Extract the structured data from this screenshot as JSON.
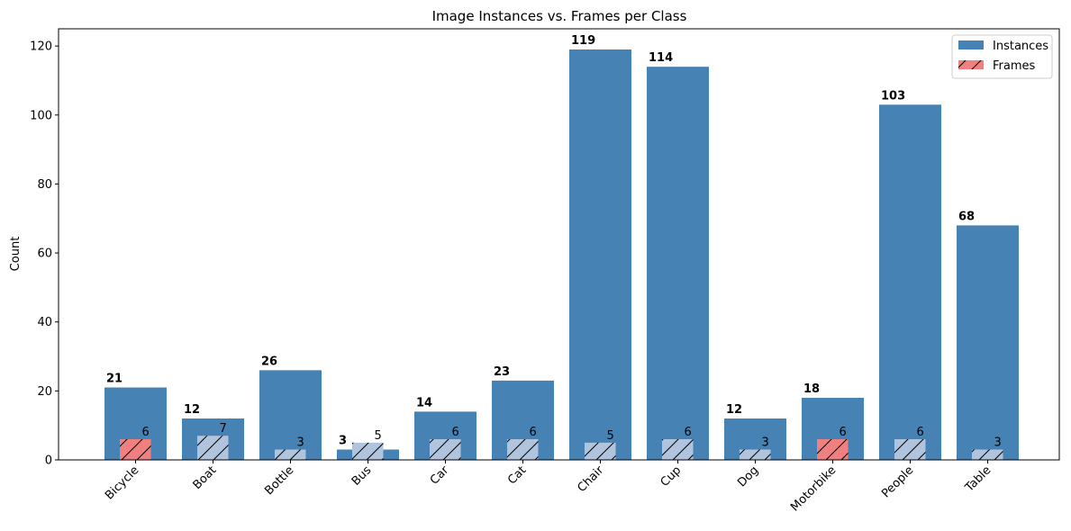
{
  "chart_data": {
    "type": "bar",
    "title": "Image Instances vs. Frames per Class",
    "xlabel": "",
    "ylabel": "Count",
    "ylim": [
      0,
      125
    ],
    "yticks": [
      0,
      20,
      40,
      60,
      80,
      100,
      120
    ],
    "categories": [
      "Bicycle",
      "Boat",
      "Bottle",
      "Bus",
      "Car",
      "Cat",
      "Chair",
      "Cup",
      "Dog",
      "Motorbike",
      "People",
      "Table"
    ],
    "series": [
      {
        "name": "Instances",
        "color": "#4682b4",
        "values": [
          21,
          12,
          26,
          3,
          14,
          23,
          119,
          114,
          12,
          18,
          103,
          68
        ]
      },
      {
        "name": "Frames",
        "color": "#b0c4de",
        "highlight_color": "#f08080",
        "highlight": [
          true,
          false,
          false,
          false,
          false,
          false,
          false,
          false,
          false,
          true,
          false,
          false
        ],
        "values": [
          6,
          7,
          3,
          5,
          6,
          6,
          5,
          6,
          3,
          6,
          6,
          3
        ]
      }
    ],
    "legend": {
      "placement": "top-right"
    },
    "grid": false
  }
}
